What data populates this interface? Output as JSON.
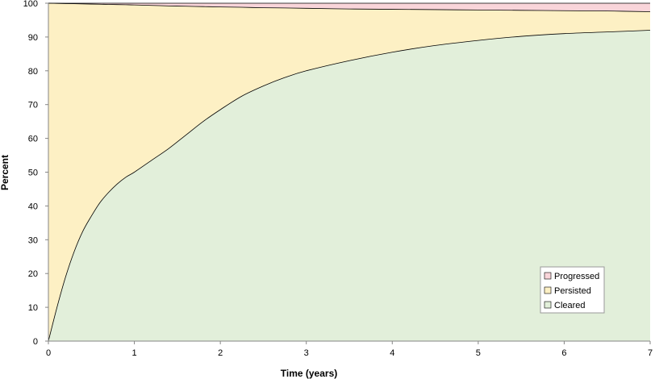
{
  "chart_data": {
    "type": "area",
    "stacked": true,
    "xlabel": "Time (years)",
    "ylabel": "Percent",
    "xlim": [
      0,
      7
    ],
    "ylim": [
      0,
      100
    ],
    "xticks": [
      0,
      1,
      2,
      3,
      4,
      5,
      6,
      7
    ],
    "yticks": [
      0,
      10,
      20,
      30,
      40,
      50,
      60,
      70,
      80,
      90,
      100
    ],
    "grid": false,
    "legend_position": "bottom-right",
    "x": [
      0,
      0.1,
      0.2,
      0.3,
      0.4,
      0.5,
      0.6,
      0.7,
      0.8,
      0.9,
      1.0,
      1.2,
      1.4,
      1.6,
      1.8,
      2.0,
      2.25,
      2.5,
      2.75,
      3.0,
      3.5,
      4.0,
      4.5,
      5.0,
      5.5,
      6.0,
      6.5,
      7.0
    ],
    "series": [
      {
        "name": "Cleared",
        "color": "#e2efda",
        "values": [
          0,
          10,
          19,
          26.5,
          32.5,
          37,
          41,
          44,
          46.5,
          48.5,
          50,
          53.5,
          57,
          61,
          65,
          68.5,
          72.5,
          75.5,
          78,
          80,
          83,
          85.5,
          87.5,
          89,
          90.2,
          91,
          91.5,
          92
        ]
      },
      {
        "name": "Persisted",
        "color": "#fdf0c4",
        "values": [
          100,
          89.95,
          80.9,
          73.35,
          67.3,
          62.75,
          58.7,
          55.65,
          53.1,
          51.05,
          49.5,
          45.85,
          42.2,
          38.1,
          34,
          30.4,
          26.3,
          23.15,
          20.6,
          18.5,
          15.3,
          12.7,
          10.6,
          9,
          7.7,
          6.8,
          6.2,
          5.5
        ]
      },
      {
        "name": "Progressed",
        "color": "#f9d5da",
        "values": [
          0,
          0.05,
          0.1,
          0.15,
          0.2,
          0.25,
          0.3,
          0.35,
          0.4,
          0.45,
          0.5,
          0.65,
          0.8,
          0.9,
          1.0,
          1.1,
          1.2,
          1.35,
          1.4,
          1.5,
          1.7,
          1.8,
          1.9,
          2.0,
          2.1,
          2.2,
          2.3,
          2.5
        ]
      }
    ],
    "legend_order": [
      "Progressed",
      "Persisted",
      "Cleared"
    ]
  }
}
